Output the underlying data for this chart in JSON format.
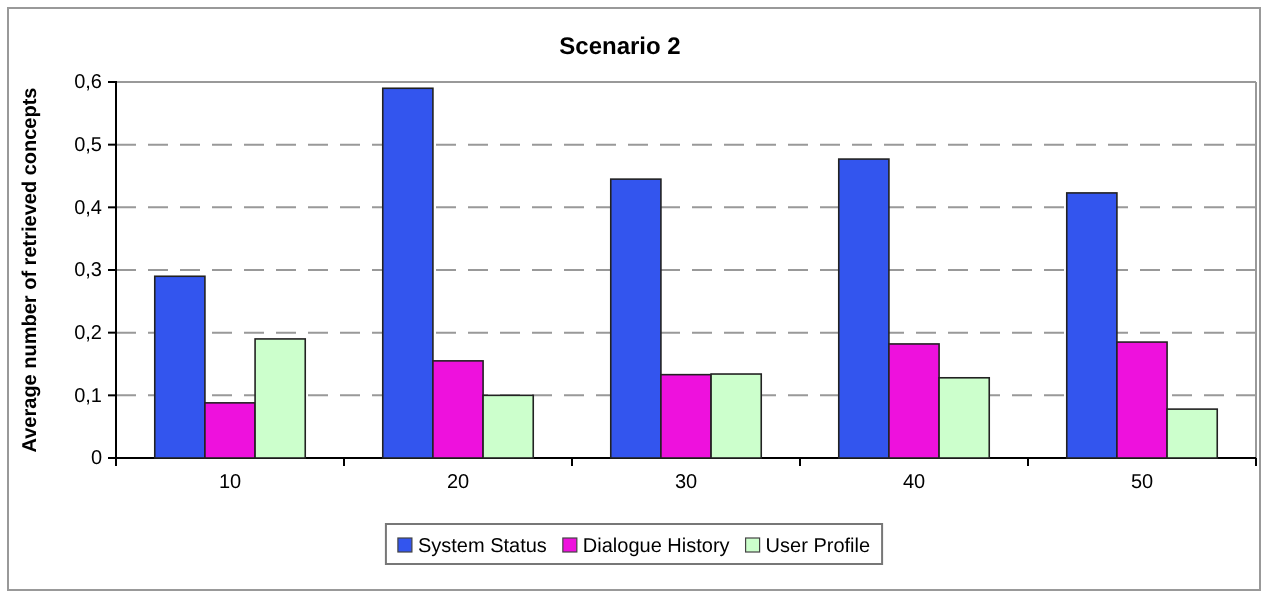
{
  "chart_data": {
    "type": "bar",
    "title": "Scenario 2",
    "ylabel": "Average number of retrieved concepts",
    "categories": [
      "10",
      "20",
      "30",
      "40",
      "50"
    ],
    "series": [
      {
        "name": "System Status",
        "color": "#3355ee",
        "values": [
          0.29,
          0.59,
          0.445,
          0.477,
          0.423
        ]
      },
      {
        "name": "Dialogue History",
        "color": "#ee11dd",
        "values": [
          0.088,
          0.155,
          0.133,
          0.182,
          0.185
        ]
      },
      {
        "name": "User Profile",
        "color": "#ccffcc",
        "values": [
          0.19,
          0.1,
          0.134,
          0.128,
          0.078
        ]
      }
    ],
    "ylim": [
      0,
      0.6
    ],
    "yticks": [
      0,
      {
        "value": 0.1,
        "label": "0,1"
      },
      {
        "value": 0.2,
        "label": "0,2"
      },
      {
        "value": 0.3,
        "label": "0,3"
      },
      {
        "value": 0.4,
        "label": "0,4"
      },
      {
        "value": 0.5,
        "label": "0,5"
      },
      {
        "value": 0.6,
        "label": "0,6"
      }
    ],
    "grid": "y",
    "legend": "bottom"
  }
}
